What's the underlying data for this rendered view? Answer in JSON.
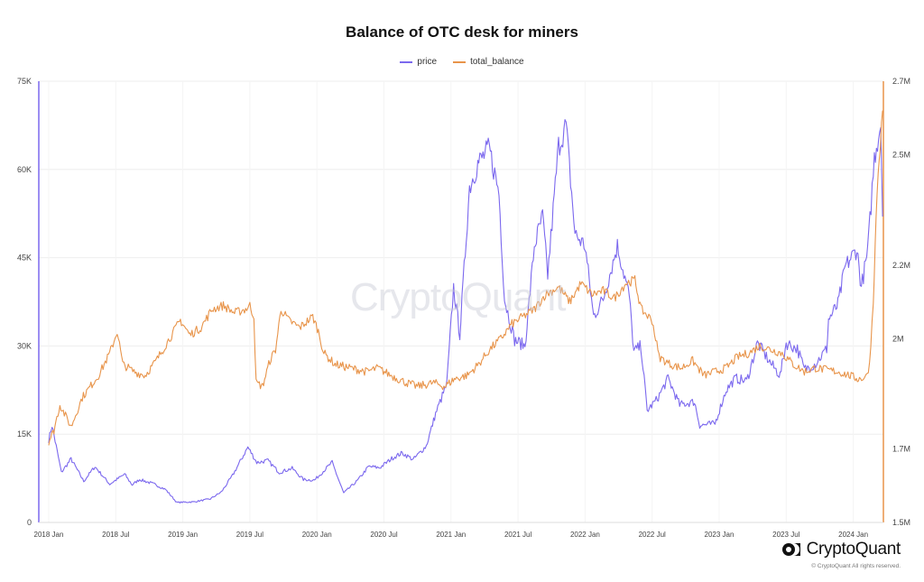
{
  "chart_data": {
    "type": "line",
    "title": "Balance of OTC desk for miners",
    "legend_position": "top-center",
    "grid": true,
    "x_ticks": [
      "2018 Jan",
      "2018 Jul",
      "2019 Jan",
      "2019 Jul",
      "2020 Jan",
      "2020 Jul",
      "2021 Jan",
      "2021 Jul",
      "2022 Jan",
      "2022 Jul",
      "2023 Jan",
      "2023 Jul",
      "2024 Jan"
    ],
    "x_range": [
      "2018-01-01",
      "2024-03-20"
    ],
    "y_left": {
      "ticks": [
        "0",
        "15K",
        "30K",
        "45K",
        "60K",
        "75K"
      ],
      "range": [
        0,
        75000
      ]
    },
    "y_right": {
      "ticks": [
        "1.5M",
        "1.7M",
        "2M",
        "2.2M",
        "2.5M",
        "2.7M"
      ],
      "range": [
        1500000,
        2700000
      ]
    },
    "series": [
      {
        "name": "price",
        "axis": "left",
        "color": "#7b68ee",
        "points": [
          [
            "2018-01-01",
            14000
          ],
          [
            "2018-01-10",
            16500
          ],
          [
            "2018-02-05",
            8500
          ],
          [
            "2018-03-01",
            10800
          ],
          [
            "2018-04-05",
            7000
          ],
          [
            "2018-05-05",
            9500
          ],
          [
            "2018-06-15",
            6500
          ],
          [
            "2018-07-25",
            8200
          ],
          [
            "2018-08-15",
            6400
          ],
          [
            "2018-09-05",
            7300
          ],
          [
            "2018-10-15",
            6500
          ],
          [
            "2018-11-15",
            5600
          ],
          [
            "2018-12-15",
            3400
          ],
          [
            "2019-02-01",
            3500
          ],
          [
            "2019-03-15",
            4000
          ],
          [
            "2019-04-15",
            5200
          ],
          [
            "2019-05-15",
            8000
          ],
          [
            "2019-06-26",
            12800
          ],
          [
            "2019-07-20",
            10200
          ],
          [
            "2019-08-20",
            10500
          ],
          [
            "2019-09-20",
            8500
          ],
          [
            "2019-10-25",
            9200
          ],
          [
            "2019-11-25",
            7300
          ],
          [
            "2019-12-25",
            7200
          ],
          [
            "2020-02-12",
            10200
          ],
          [
            "2020-03-13",
            5000
          ],
          [
            "2020-04-20",
            7100
          ],
          [
            "2020-05-20",
            9500
          ],
          [
            "2020-06-20",
            9300
          ],
          [
            "2020-07-25",
            11000
          ],
          [
            "2020-08-20",
            11800
          ],
          [
            "2020-09-20",
            10700
          ],
          [
            "2020-10-25",
            13000
          ],
          [
            "2020-11-20",
            18500
          ],
          [
            "2020-12-20",
            23500
          ],
          [
            "2021-01-08",
            40000
          ],
          [
            "2021-01-25",
            32000
          ],
          [
            "2021-02-21",
            57000
          ],
          [
            "2021-03-13",
            61000
          ],
          [
            "2021-04-14",
            63500
          ],
          [
            "2021-05-10",
            56000
          ],
          [
            "2021-05-25",
            38000
          ],
          [
            "2021-06-22",
            31000
          ],
          [
            "2021-07-20",
            30000
          ],
          [
            "2021-08-15",
            47000
          ],
          [
            "2021-09-07",
            52000
          ],
          [
            "2021-09-21",
            42000
          ],
          [
            "2021-10-20",
            64000
          ],
          [
            "2021-11-10",
            67500
          ],
          [
            "2021-12-04",
            49000
          ],
          [
            "2022-01-01",
            47000
          ],
          [
            "2022-01-24",
            35000
          ],
          [
            "2022-02-20",
            38000
          ],
          [
            "2022-03-28",
            47000
          ],
          [
            "2022-04-30",
            38500
          ],
          [
            "2022-05-12",
            29000
          ],
          [
            "2022-06-01",
            30000
          ],
          [
            "2022-06-18",
            19000
          ],
          [
            "2022-07-15",
            21000
          ],
          [
            "2022-08-14",
            24500
          ],
          [
            "2022-09-15",
            20000
          ],
          [
            "2022-10-25",
            20500
          ],
          [
            "2022-11-09",
            16500
          ],
          [
            "2022-12-20",
            16800
          ],
          [
            "2023-01-20",
            22500
          ],
          [
            "2023-02-15",
            24500
          ],
          [
            "2023-03-15",
            24000
          ],
          [
            "2023-04-14",
            30500
          ],
          [
            "2023-05-20",
            27000
          ],
          [
            "2023-06-15",
            25000
          ],
          [
            "2023-07-01",
            30500
          ],
          [
            "2023-08-01",
            29500
          ],
          [
            "2023-08-20",
            26000
          ],
          [
            "2023-09-20",
            27000
          ],
          [
            "2023-10-20",
            29500
          ],
          [
            "2023-10-25",
            34500
          ],
          [
            "2023-11-20",
            37000
          ],
          [
            "2023-12-10",
            43500
          ],
          [
            "2024-01-11",
            46500
          ],
          [
            "2024-01-23",
            40000
          ],
          [
            "2024-02-10",
            46000
          ],
          [
            "2024-02-28",
            62000
          ],
          [
            "2024-03-15",
            68000
          ],
          [
            "2024-03-20",
            52000
          ]
        ]
      },
      {
        "name": "total_balance",
        "axis": "right",
        "color": "#e8944a",
        "points": [
          [
            "2018-01-01",
            1720000
          ],
          [
            "2018-01-15",
            1750000
          ],
          [
            "2018-02-01",
            1820000
          ],
          [
            "2018-03-01",
            1760000
          ],
          [
            "2018-04-01",
            1840000
          ],
          [
            "2018-05-15",
            1900000
          ],
          [
            "2018-06-15",
            1960000
          ],
          [
            "2018-07-05",
            2020000
          ],
          [
            "2018-07-20",
            1930000
          ],
          [
            "2018-08-20",
            1910000
          ],
          [
            "2018-09-20",
            1900000
          ],
          [
            "2018-10-20",
            1940000
          ],
          [
            "2018-12-01",
            2010000
          ],
          [
            "2018-12-25",
            2050000
          ],
          [
            "2019-01-20",
            2010000
          ],
          [
            "2019-02-20",
            2030000
          ],
          [
            "2019-03-20",
            2080000
          ],
          [
            "2019-04-20",
            2090000
          ],
          [
            "2019-05-20",
            2070000
          ],
          [
            "2019-06-20",
            2080000
          ],
          [
            "2019-07-01",
            2090000
          ],
          [
            "2019-07-12",
            2060000
          ],
          [
            "2019-07-18",
            1880000
          ],
          [
            "2019-08-05",
            1870000
          ],
          [
            "2019-08-25",
            1940000
          ],
          [
            "2019-09-10",
            1970000
          ],
          [
            "2019-09-25",
            2080000
          ],
          [
            "2019-10-15",
            2050000
          ],
          [
            "2019-11-15",
            2030000
          ],
          [
            "2019-12-20",
            2060000
          ],
          [
            "2020-01-05",
            2020000
          ],
          [
            "2020-01-20",
            1960000
          ],
          [
            "2020-02-20",
            1930000
          ],
          [
            "2020-04-01",
            1920000
          ],
          [
            "2020-05-15",
            1910000
          ],
          [
            "2020-06-15",
            1920000
          ],
          [
            "2020-07-20",
            1900000
          ],
          [
            "2020-09-01",
            1880000
          ],
          [
            "2020-10-01",
            1870000
          ],
          [
            "2020-11-15",
            1880000
          ],
          [
            "2020-12-15",
            1870000
          ],
          [
            "2021-01-10",
            1890000
          ],
          [
            "2021-02-15",
            1900000
          ],
          [
            "2021-03-15",
            1930000
          ],
          [
            "2021-04-15",
            1970000
          ],
          [
            "2021-05-15",
            2000000
          ],
          [
            "2021-06-15",
            2040000
          ],
          [
            "2021-07-15",
            2060000
          ],
          [
            "2021-08-15",
            2080000
          ],
          [
            "2021-09-15",
            2120000
          ],
          [
            "2021-10-20",
            2140000
          ],
          [
            "2021-11-20",
            2100000
          ],
          [
            "2021-12-20",
            2150000
          ],
          [
            "2022-01-20",
            2120000
          ],
          [
            "2022-02-20",
            2130000
          ],
          [
            "2022-03-20",
            2110000
          ],
          [
            "2022-04-20",
            2150000
          ],
          [
            "2022-05-15",
            2160000
          ],
          [
            "2022-06-01",
            2080000
          ],
          [
            "2022-07-01",
            2050000
          ],
          [
            "2022-07-20",
            1950000
          ],
          [
            "2022-08-20",
            1930000
          ],
          [
            "2022-09-20",
            1920000
          ],
          [
            "2022-10-20",
            1940000
          ],
          [
            "2022-11-20",
            1900000
          ],
          [
            "2022-12-20",
            1910000
          ],
          [
            "2023-01-20",
            1920000
          ],
          [
            "2023-02-20",
            1950000
          ],
          [
            "2023-03-20",
            1960000
          ],
          [
            "2023-04-20",
            1980000
          ],
          [
            "2023-05-20",
            1970000
          ],
          [
            "2023-06-20",
            1960000
          ],
          [
            "2023-07-20",
            1930000
          ],
          [
            "2023-08-20",
            1910000
          ],
          [
            "2023-09-20",
            1920000
          ],
          [
            "2023-10-20",
            1915000
          ],
          [
            "2023-11-20",
            1910000
          ],
          [
            "2023-12-20",
            1900000
          ],
          [
            "2024-01-15",
            1890000
          ],
          [
            "2024-02-05",
            1895000
          ],
          [
            "2024-02-15",
            1930000
          ],
          [
            "2024-02-25",
            2100000
          ],
          [
            "2024-03-05",
            2400000
          ],
          [
            "2024-03-20",
            2620000
          ]
        ]
      }
    ]
  },
  "watermark": "CryptoQuant",
  "brand": {
    "name": "CryptoQuant",
    "copyright": "© CryptoQuant All rights reserved."
  }
}
